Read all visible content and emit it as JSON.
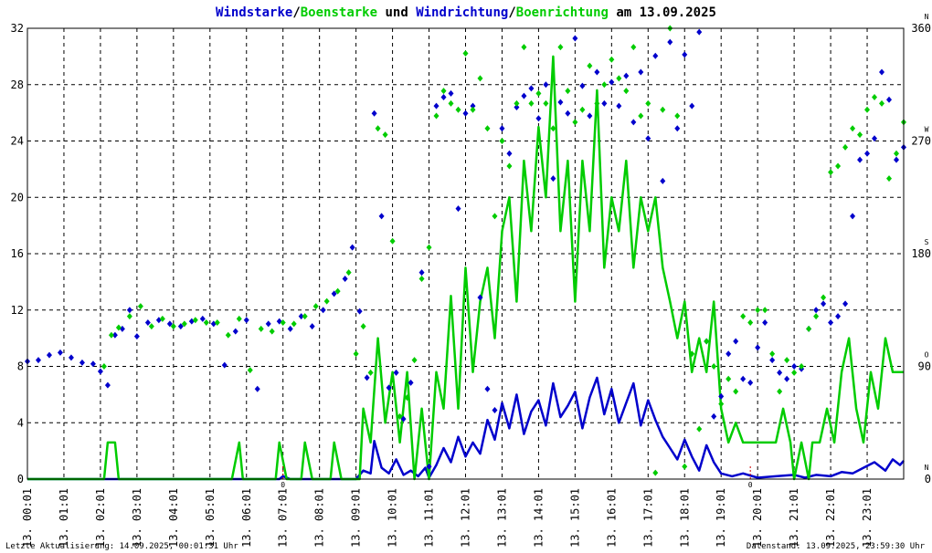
{
  "chart_data": {
    "type": "line",
    "title_parts": [
      {
        "text": "Windstarke",
        "color": "#0000cc"
      },
      {
        "text": "/",
        "color": "#000000"
      },
      {
        "text": "Boenstarke",
        "color": "#00cc00"
      },
      {
        "text": " und ",
        "color": "#000000"
      },
      {
        "text": "Windrichtung",
        "color": "#0000cc"
      },
      {
        "text": "/",
        "color": "#000000"
      },
      {
        "text": "Boenrichtung",
        "color": "#00cc00"
      },
      {
        "text": " am 13.09.2025",
        "color": "#000000"
      }
    ],
    "x_range": [
      0,
      24
    ],
    "y_left_range": [
      0,
      32
    ],
    "y_left_ticks": [
      "0",
      "4",
      "8",
      "12",
      "16",
      "20",
      "24",
      "28",
      "32"
    ],
    "y_right_range": [
      0,
      360
    ],
    "y_right_ticks": [
      "0",
      "90",
      "180",
      "270",
      "360"
    ],
    "y_right_compass": [
      "N",
      "O",
      "S",
      "W",
      "N"
    ],
    "x_tick_labels": [
      "13. 00:01",
      "13. 01:01",
      "13. 02:01",
      "13. 03:01",
      "13. 04:01",
      "13. 05:01",
      "13. 06:01",
      "13. 07:01",
      "13. 08:01",
      "13. 09:01",
      "13. 10:01",
      "13. 11:01",
      "13. 12:01",
      "13. 13:01",
      "13. 14:01",
      "13. 15:01",
      "13. 16:01",
      "13. 17:01",
      "13. 18:01",
      "13. 19:01",
      "13. 20:01",
      "13. 21:01",
      "13. 22:01",
      "13. 23:01"
    ],
    "zero_markers": [
      {
        "x": 7.0,
        "label": "0"
      },
      {
        "x": 19.8,
        "label": "0"
      }
    ],
    "grid": true,
    "series": [
      {
        "role": "windstarke",
        "color": "#0000cc",
        "x": [
          0,
          1,
          2,
          3,
          4,
          5,
          6,
          6.9,
          7.0,
          7.2,
          8,
          8.8,
          9.0,
          9.2,
          9.4,
          9.5,
          9.7,
          9.9,
          10.1,
          10.3,
          10.5,
          10.7,
          10.9,
          11.0,
          11.2,
          11.4,
          11.6,
          11.8,
          12.0,
          12.2,
          12.4,
          12.6,
          12.8,
          13.0,
          13.2,
          13.4,
          13.6,
          13.8,
          14.0,
          14.2,
          14.4,
          14.6,
          14.8,
          15.0,
          15.2,
          15.4,
          15.6,
          15.8,
          16.0,
          16.2,
          16.4,
          16.6,
          16.8,
          17.0,
          17.2,
          17.4,
          17.6,
          17.8,
          18.0,
          18.2,
          18.4,
          18.6,
          18.8,
          19.0,
          19.3,
          19.6,
          20.0,
          20.5,
          21.0,
          21.3,
          21.6,
          22.0,
          22.3,
          22.6,
          22.9,
          23.2,
          23.5,
          23.7,
          23.9,
          24.0
        ],
        "y": [
          0,
          0,
          0,
          0,
          0,
          0,
          0,
          0,
          0.2,
          0,
          0,
          0,
          0,
          0.6,
          0.4,
          2.7,
          0.8,
          0.4,
          1.4,
          0.3,
          0.6,
          0.2,
          0.8,
          0.1,
          1.0,
          2.2,
          1.2,
          3.0,
          1.6,
          2.6,
          1.8,
          4.2,
          2.8,
          5.4,
          3.6,
          6.0,
          3.2,
          4.8,
          5.6,
          3.8,
          6.8,
          4.4,
          5.2,
          6.2,
          3.6,
          5.8,
          7.2,
          4.6,
          6.4,
          4.0,
          5.4,
          6.8,
          3.8,
          5.6,
          4.2,
          3.0,
          2.2,
          1.4,
          2.8,
          1.6,
          0.6,
          2.4,
          1.2,
          0.4,
          0.2,
          0.4,
          0.1,
          0.2,
          0.3,
          0.1,
          0.3,
          0.2,
          0.5,
          0.4,
          0.8,
          1.2,
          0.6,
          1.4,
          1.0,
          1.3
        ]
      },
      {
        "role": "boenstarke",
        "color": "#00cc00",
        "x": [
          0,
          2.1,
          2.2,
          2.4,
          2.5,
          5.6,
          5.8,
          5.9,
          6.8,
          6.9,
          7.1,
          7.5,
          7.6,
          7.8,
          8.3,
          8.4,
          8.6,
          9.1,
          9.2,
          9.4,
          9.6,
          9.8,
          10.0,
          10.2,
          10.4,
          10.6,
          10.8,
          11.0,
          11.2,
          11.4,
          11.6,
          11.8,
          12.0,
          12.2,
          12.4,
          12.6,
          12.8,
          13.0,
          13.2,
          13.4,
          13.6,
          13.8,
          14.0,
          14.2,
          14.4,
          14.6,
          14.8,
          15.0,
          15.2,
          15.4,
          15.6,
          15.8,
          16.0,
          16.2,
          16.4,
          16.6,
          16.8,
          17.0,
          17.2,
          17.4,
          17.6,
          17.8,
          18.0,
          18.2,
          18.4,
          18.6,
          18.8,
          19.0,
          19.2,
          19.4,
          19.6,
          20.5,
          20.7,
          20.9,
          21.0,
          21.2,
          21.4,
          21.5,
          21.7,
          21.9,
          22.1,
          22.3,
          22.5,
          22.7,
          22.9,
          23.1,
          23.3,
          23.5,
          23.7,
          23.9,
          24.0
        ],
        "y": [
          0,
          0,
          2.6,
          2.6,
          0,
          0,
          2.6,
          0,
          0,
          2.6,
          0,
          0,
          2.6,
          0,
          0,
          2.6,
          0,
          0,
          5.0,
          2.6,
          10.0,
          4.0,
          7.6,
          2.6,
          7.6,
          0,
          5.0,
          0,
          7.6,
          5.0,
          13.0,
          5.0,
          15.0,
          7.6,
          12.6,
          15.0,
          10.0,
          17.6,
          20.0,
          12.6,
          22.6,
          17.6,
          25.0,
          20.0,
          30.0,
          17.6,
          22.6,
          12.6,
          22.6,
          17.6,
          27.6,
          15.0,
          20.0,
          17.6,
          22.6,
          15.0,
          20.0,
          17.6,
          20.0,
          15.0,
          12.6,
          10.0,
          12.6,
          7.6,
          10.0,
          7.6,
          12.6,
          5.0,
          2.6,
          4.0,
          2.6,
          2.6,
          5.0,
          2.6,
          0,
          2.6,
          0,
          2.6,
          2.6,
          5.0,
          2.6,
          7.6,
          10.0,
          5.0,
          2.6,
          7.6,
          5.0,
          10.0,
          7.6,
          7.6,
          7.6
        ]
      },
      {
        "role": "windrichtung",
        "color": "#0000cc",
        "marker": "diamond",
        "x": [
          0,
          0.3,
          0.6,
          0.9,
          1.2,
          1.5,
          1.8,
          2.0,
          2.2,
          2.4,
          2.6,
          2.8,
          3.0,
          3.3,
          3.6,
          3.9,
          4.2,
          4.5,
          4.8,
          5.1,
          5.4,
          5.7,
          6.0,
          6.3,
          6.6,
          6.9,
          7.2,
          7.5,
          7.8,
          8.1,
          8.4,
          8.7,
          8.9,
          9.1,
          9.3,
          9.5,
          9.7,
          9.9,
          10.1,
          10.3,
          10.5,
          10.8,
          11.0,
          11.2,
          11.4,
          11.6,
          11.8,
          12.0,
          12.2,
          12.4,
          12.6,
          12.8,
          13.0,
          13.2,
          13.4,
          13.6,
          13.8,
          14.0,
          14.2,
          14.4,
          14.6,
          14.8,
          15.0,
          15.2,
          15.4,
          15.6,
          15.8,
          16.0,
          16.2,
          16.4,
          16.6,
          16.8,
          17.0,
          17.2,
          17.4,
          17.6,
          17.8,
          18.0,
          18.2,
          18.4,
          18.6,
          18.8,
          19.0,
          19.2,
          19.4,
          19.6,
          19.8,
          20.0,
          20.2,
          20.4,
          20.6,
          20.8,
          21.0,
          21.2,
          21.4,
          21.6,
          21.8,
          22.0,
          22.2,
          22.4,
          22.6,
          22.8,
          23.0,
          23.2,
          23.4,
          23.6,
          23.8,
          24.0
        ],
        "y": [
          94,
          95,
          99,
          101,
          97,
          93,
          92,
          86,
          75,
          115,
          120,
          135,
          114,
          125,
          127,
          124,
          122,
          126,
          128,
          124,
          91,
          118,
          127,
          72,
          124,
          126,
          120,
          130,
          122,
          135,
          148,
          160,
          185,
          134,
          81,
          292,
          210,
          73,
          85,
          48,
          77,
          165,
          10,
          298,
          305,
          308,
          216,
          292,
          298,
          145,
          72,
          55,
          280,
          260,
          297,
          306,
          312,
          288,
          315,
          240,
          301,
          292,
          352,
          314,
          290,
          325,
          300,
          317,
          298,
          322,
          285,
          325,
          272,
          338,
          238,
          349,
          280,
          339,
          298,
          357,
          110,
          50,
          66,
          100,
          110,
          80,
          77,
          105,
          125,
          95,
          85,
          80,
          90,
          88,
          120,
          135,
          140,
          125,
          130,
          140,
          210,
          255,
          260,
          272,
          325,
          303,
          255,
          265
        ]
      },
      {
        "role": "boenrichtung",
        "color": "#00cc00",
        "marker": "diamond",
        "x": [
          2.1,
          2.3,
          2.5,
          2.8,
          3.1,
          3.4,
          3.7,
          4.0,
          4.3,
          4.6,
          4.9,
          5.2,
          5.5,
          5.8,
          6.1,
          6.4,
          6.7,
          7.0,
          7.3,
          7.6,
          7.9,
          8.2,
          8.5,
          8.8,
          9.0,
          9.2,
          9.4,
          9.6,
          9.8,
          10.0,
          10.2,
          10.4,
          10.6,
          10.8,
          11.0,
          11.2,
          11.4,
          11.6,
          11.8,
          12.0,
          12.2,
          12.4,
          12.6,
          12.8,
          13.0,
          13.2,
          13.4,
          13.6,
          13.8,
          14.0,
          14.2,
          14.4,
          14.6,
          14.8,
          15.0,
          15.2,
          15.4,
          15.6,
          15.8,
          16.0,
          16.2,
          16.4,
          16.6,
          16.8,
          17.0,
          17.2,
          17.4,
          17.6,
          17.8,
          18.0,
          18.2,
          18.4,
          18.6,
          18.8,
          19.0,
          19.2,
          19.4,
          19.6,
          19.8,
          20.0,
          20.2,
          20.4,
          20.6,
          20.8,
          21.0,
          21.2,
          21.4,
          21.6,
          21.8,
          22.0,
          22.2,
          22.4,
          22.6,
          22.8,
          23.0,
          23.2,
          23.4,
          23.6,
          23.8,
          24.0
        ],
        "y": [
          90,
          115,
          121,
          130,
          138,
          122,
          128,
          122,
          124,
          127,
          125,
          125,
          115,
          128,
          87,
          120,
          118,
          125,
          124,
          130,
          138,
          142,
          150,
          165,
          100,
          122,
          85,
          280,
          275,
          190,
          50,
          65,
          95,
          160,
          185,
          290,
          310,
          300,
          295,
          340,
          295,
          320,
          280,
          210,
          270,
          250,
          300,
          345,
          300,
          308,
          300,
          280,
          345,
          310,
          285,
          295,
          330,
          300,
          315,
          335,
          320,
          310,
          345,
          290,
          300,
          5,
          295,
          360,
          290,
          10,
          100,
          40,
          110,
          90,
          60,
          80,
          70,
          130,
          125,
          135,
          135,
          100,
          70,
          95,
          85,
          90,
          120,
          130,
          145,
          245,
          250,
          265,
          280,
          275,
          295,
          305,
          300,
          240,
          260,
          285
        ]
      }
    ],
    "footer_left": "Letzte Aktualisierung: 14.09.2025, 00:01:31 Uhr",
    "footer_right": "Datenstand: 13.09.2025, 23:59:30 Uhr"
  }
}
